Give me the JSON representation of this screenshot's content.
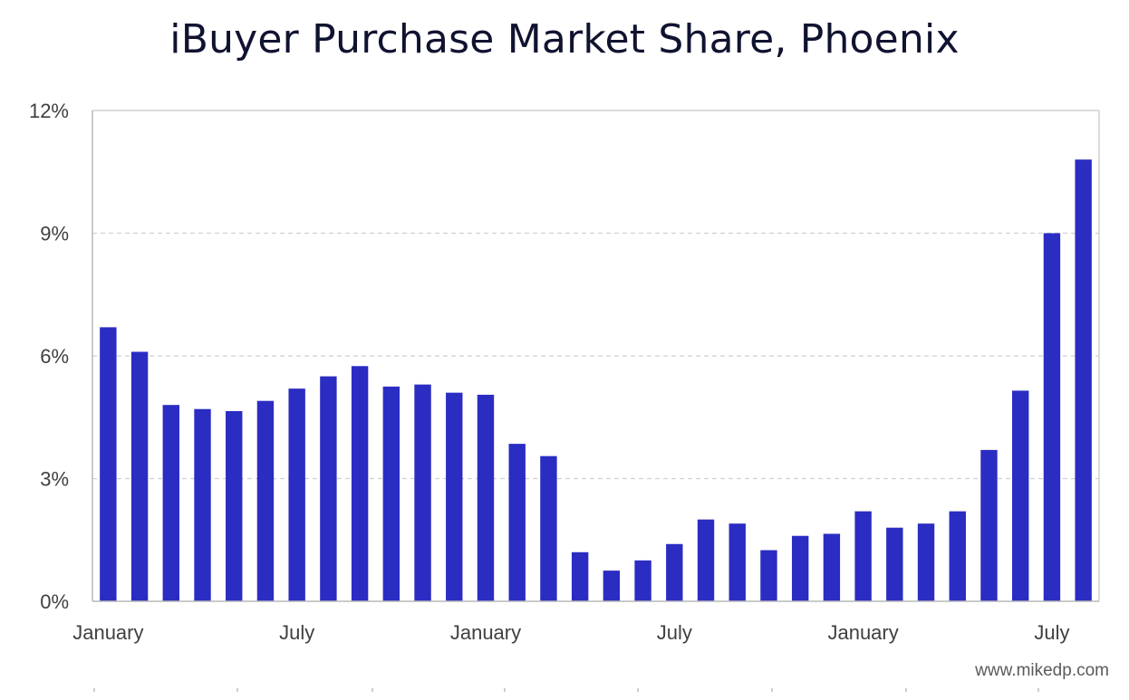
{
  "chart_data": {
    "type": "bar",
    "title": "iBuyer Purchase Market Share, Phoenix",
    "xlabel": "",
    "ylabel": "",
    "ylim": [
      0,
      12
    ],
    "yticks": [
      0,
      3,
      6,
      9,
      12
    ],
    "ytick_labels": [
      "0%",
      "3%",
      "6%",
      "9%",
      "12%"
    ],
    "xtick_labels": [
      {
        "index": 0,
        "label": "January"
      },
      {
        "index": 6,
        "label": "July"
      },
      {
        "index": 12,
        "label": "January"
      },
      {
        "index": 18,
        "label": "July"
      },
      {
        "index": 24,
        "label": "January"
      },
      {
        "index": 30,
        "label": "July"
      }
    ],
    "values": [
      6.7,
      6.1,
      4.8,
      4.7,
      4.65,
      4.9,
      5.2,
      5.5,
      5.75,
      5.25,
      5.3,
      5.1,
      5.05,
      3.85,
      3.55,
      1.2,
      0.75,
      1.0,
      1.4,
      2.0,
      1.9,
      1.25,
      1.6,
      1.65,
      2.2,
      1.8,
      1.9,
      2.2,
      3.7,
      5.15,
      9.0,
      10.8
    ],
    "bar_color": "#2b2cc2",
    "grid": true,
    "grid_color": "#cfcfcf"
  },
  "watermark": "www.mikedp.com"
}
